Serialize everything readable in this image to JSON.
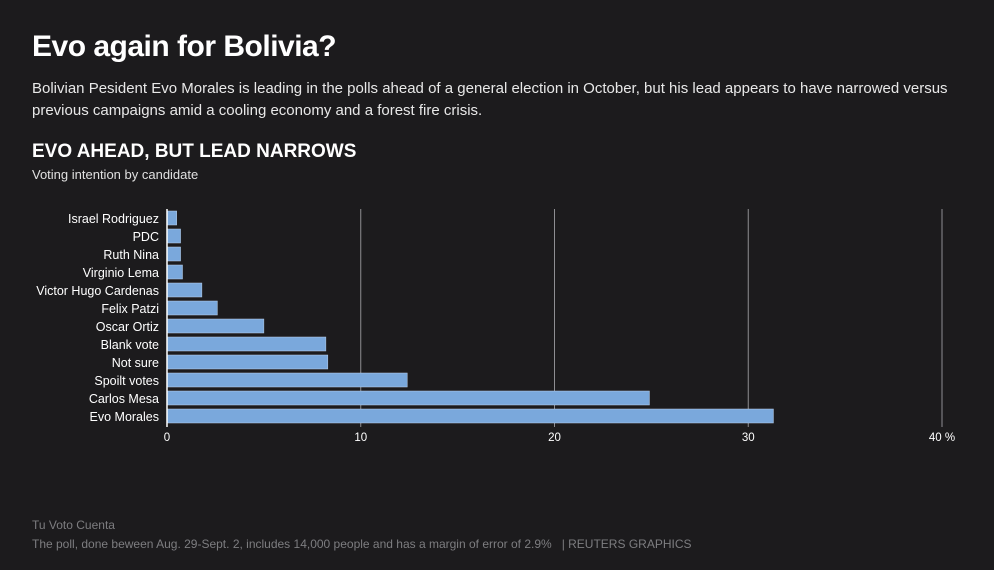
{
  "header": {
    "title": "Evo again for Bolivia?",
    "dek": "Bolivian Pesident Evo Morales is leading in the polls ahead of a general election in October, but his lead appears to have narrowed versus previous campaigns amid a cooling economy and a forest fire crisis."
  },
  "chart_data": {
    "type": "bar",
    "orientation": "horizontal",
    "title": "EVO AHEAD, BUT LEAD NARROWS",
    "subtitle": "Voting intention by candidate",
    "categories": [
      "Israel Rodriguez",
      "PDC",
      "Ruth Nina",
      "Virginio Lema",
      "Victor Hugo Cardenas",
      "Felix Patzi",
      "Oscar Ortiz",
      "Blank vote",
      "Not sure",
      "Spoilt votes",
      "Carlos Mesa",
      "Evo Morales"
    ],
    "values": [
      0.5,
      0.7,
      0.7,
      0.8,
      1.8,
      2.6,
      5.0,
      8.2,
      8.3,
      12.4,
      24.9,
      31.3
    ],
    "xlim": [
      0,
      40
    ],
    "ticks": [
      "0",
      "10",
      "20",
      "30",
      "40 %"
    ],
    "grid": true,
    "bar_color": "#7aa8dc"
  },
  "footer": {
    "source": "Tu Voto Cuenta",
    "note": "The poll, done beween Aug. 29-Sept. 2, includes 14,000 people and has a margin of error of 2.9%",
    "credit": "| REUTERS GRAPHICS"
  }
}
